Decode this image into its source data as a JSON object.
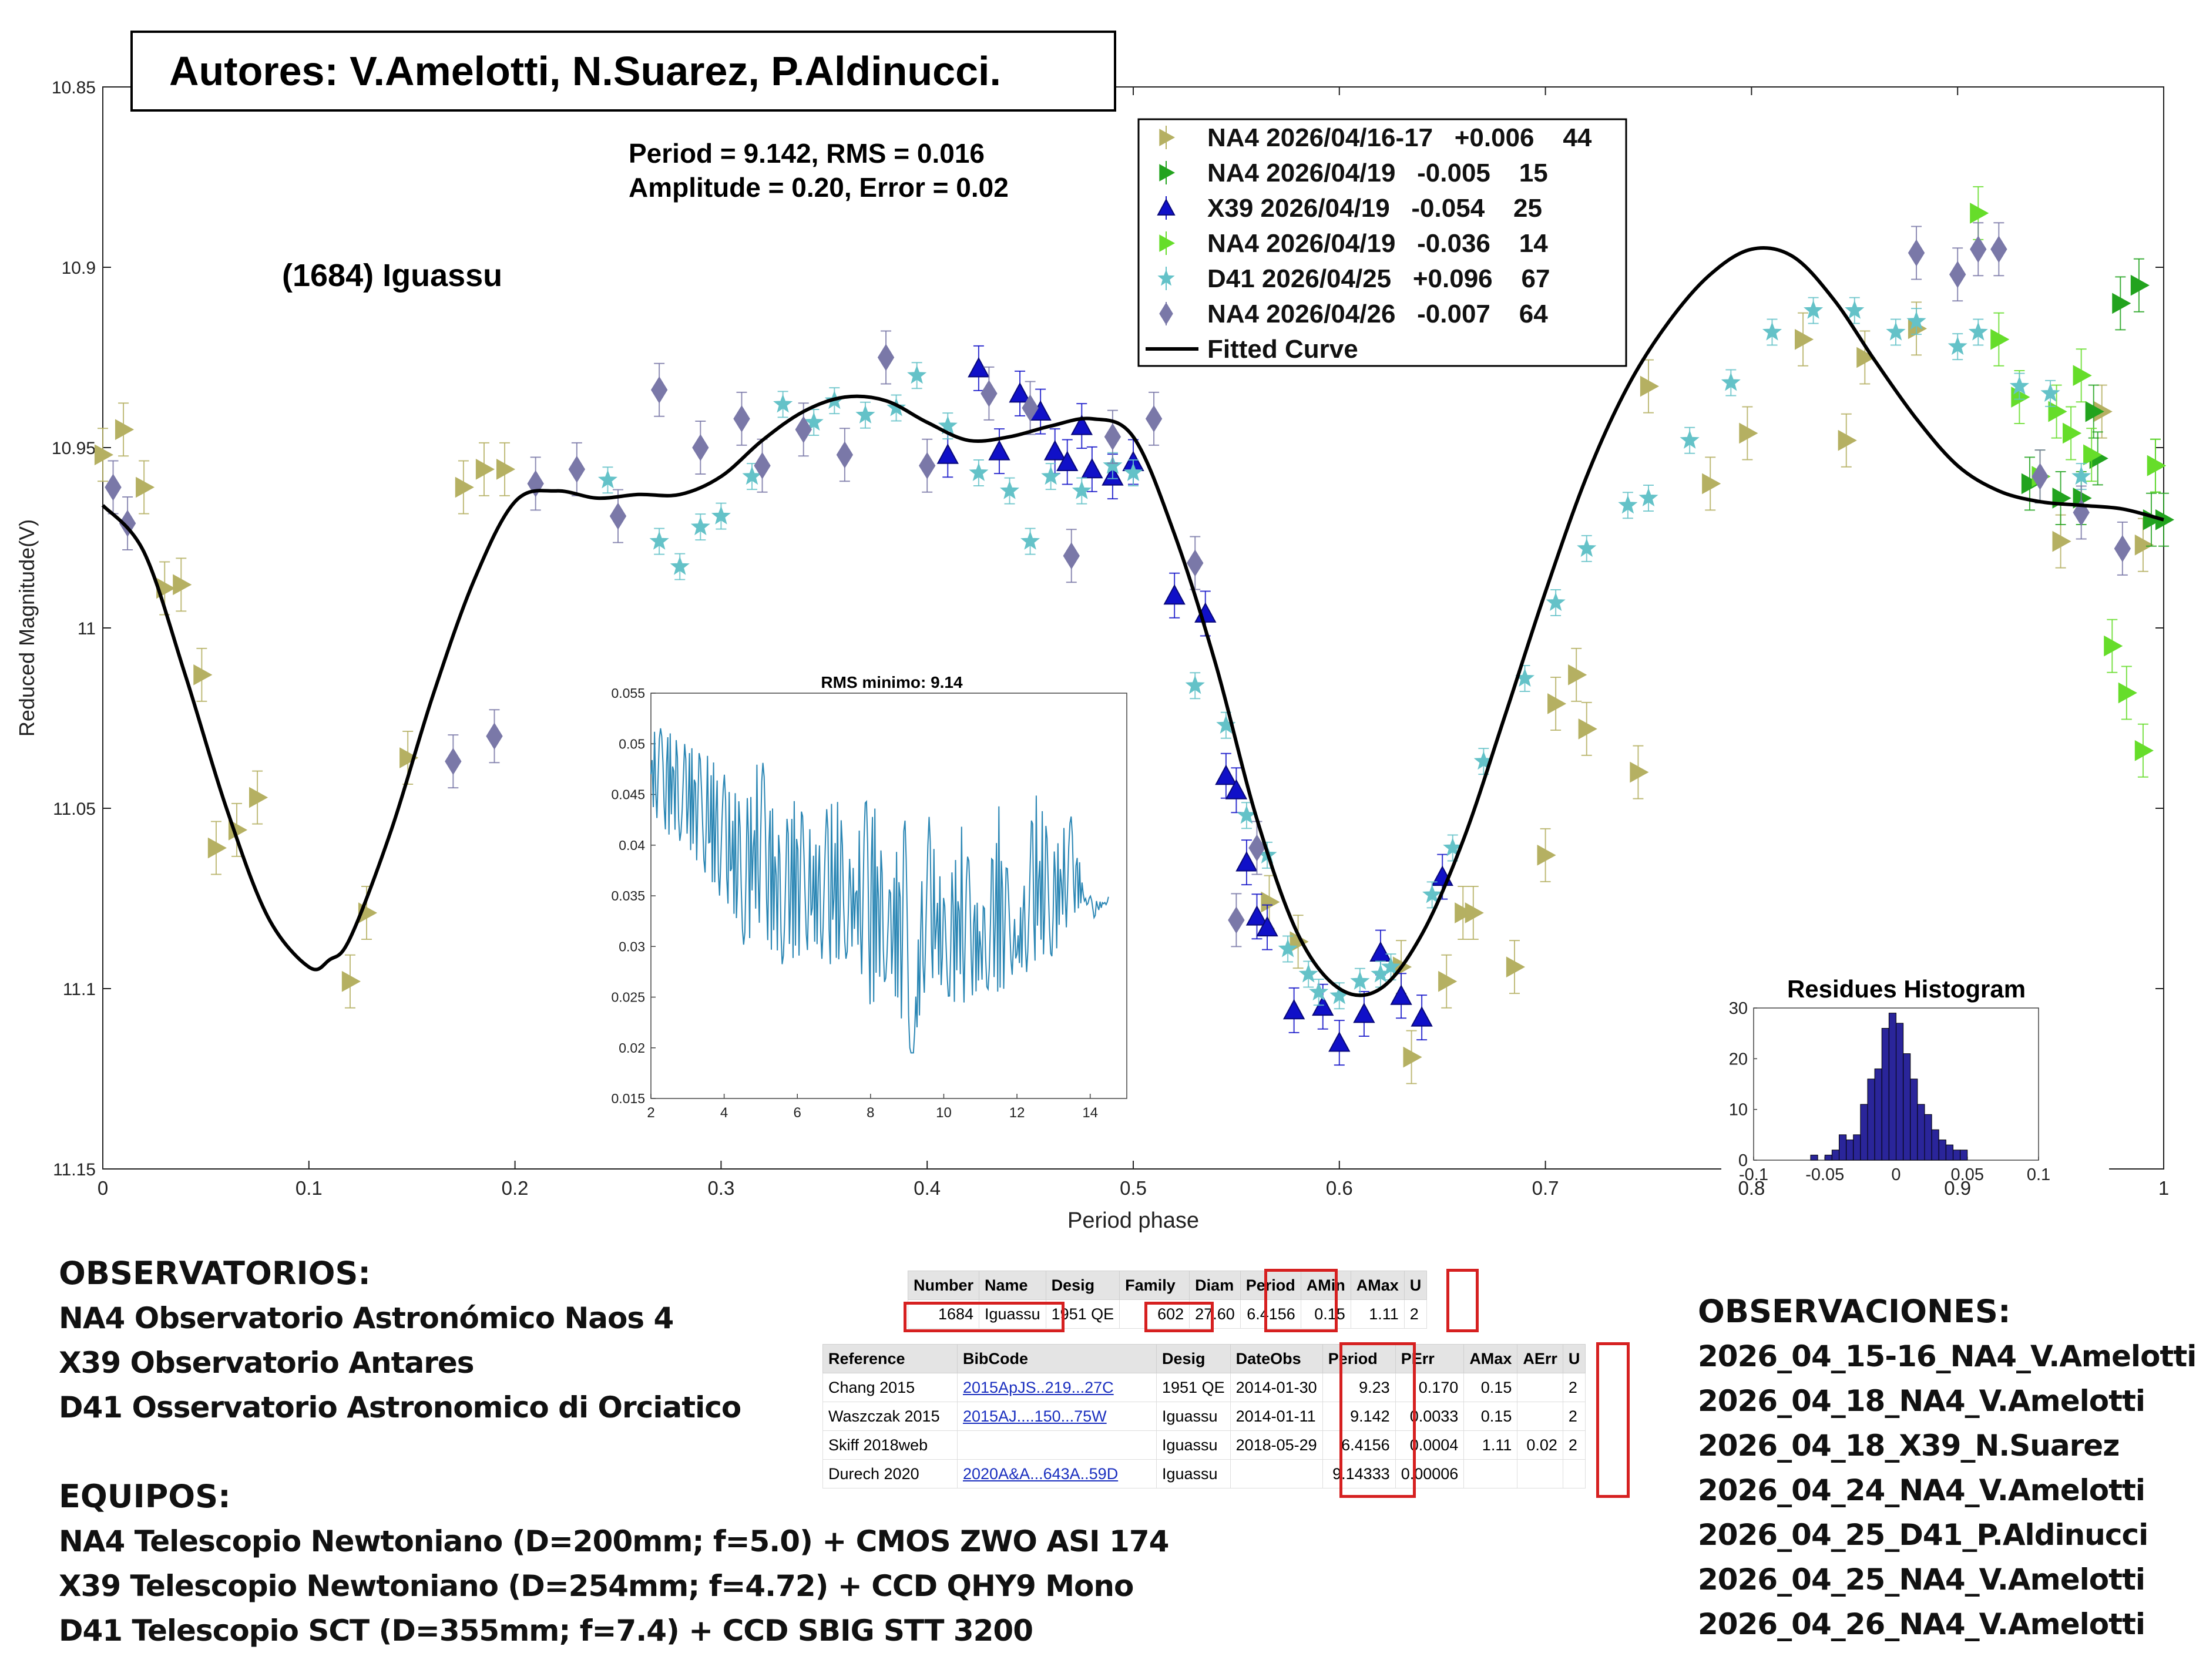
{
  "header": {
    "authors": "Autores: V.Amelotti, N.Suarez, P.Aldinucci.",
    "object_name": "(1684) Iguassu",
    "stats_line1": "Period =  9.142, RMS = 0.016",
    "stats_line2": "Amplitude = 0.20, Error = 0.02"
  },
  "chart_data": [
    {
      "id": "lightcurve",
      "type": "scatter",
      "xlabel": "Period phase",
      "ylabel": "Reduced Magnitude(V)",
      "xlim": [
        0,
        1
      ],
      "ylim": [
        10.85,
        11.15
      ],
      "y_reversed": true,
      "x_ticks": [
        "0",
        "0.1",
        "0.2",
        "0.3",
        "0.4",
        "0.5",
        "0.6",
        "0.7",
        "0.8",
        "0.9",
        "1"
      ],
      "y_ticks": [
        "10.85",
        "10.9",
        "10.95",
        "11",
        "11.05",
        "11.1",
        "11.15"
      ],
      "grid": false,
      "legend_placement": "top-right",
      "series": [
        {
          "name": "NA4 2026/04/16-17   +0.006    44",
          "marker": "triangle-right",
          "color": "#b5b062",
          "x": [
            0.0,
            0.01,
            0.02,
            0.03,
            0.038,
            0.048,
            0.055,
            0.065,
            0.075,
            0.12,
            0.128,
            0.148,
            0.175,
            0.185,
            0.195,
            0.566,
            0.58,
            0.63,
            0.635,
            0.652,
            0.66,
            0.665,
            0.685,
            0.7,
            0.705,
            0.715,
            0.72,
            0.745,
            0.75,
            0.78,
            0.798,
            0.825,
            0.846,
            0.855,
            0.88,
            0.95,
            0.97,
            0.99
          ],
          "y": [
            10.952,
            10.945,
            10.961,
            10.989,
            10.988,
            11.013,
            11.061,
            11.056,
            11.047,
            11.098,
            11.079,
            11.036,
            10.961,
            10.956,
            10.956,
            11.076,
            11.087,
            11.094,
            11.119,
            11.098,
            11.079,
            11.079,
            11.094,
            11.063,
            11.021,
            11.013,
            11.028,
            11.04,
            10.933,
            10.96,
            10.946,
            10.92,
            10.948,
            10.925,
            10.917,
            10.976,
            10.94,
            10.977
          ]
        },
        {
          "name": "NA4 2026/04/19   -0.005    15",
          "marker": "triangle-right",
          "color": "#22a31e",
          "x": [
            0.935,
            0.95,
            0.96,
            0.966,
            0.968,
            0.979,
            0.988,
            0.994,
            0.996,
            1.0
          ],
          "y": [
            10.96,
            10.964,
            10.964,
            10.94,
            10.953,
            10.91,
            10.905,
            10.97,
            10.955,
            10.97
          ]
        },
        {
          "name": "X39 2026/04/19   -0.054    25",
          "marker": "triangle-up",
          "color": "#1010c8",
          "x": [
            0.41,
            0.425,
            0.435,
            0.445,
            0.455,
            0.462,
            0.468,
            0.475,
            0.48,
            0.49,
            0.5,
            0.52,
            0.535,
            0.545,
            0.55,
            0.555,
            0.56,
            0.565,
            0.578,
            0.592,
            0.6,
            0.612,
            0.62,
            0.63,
            0.64,
            0.65
          ],
          "y": [
            10.952,
            10.928,
            10.951,
            10.935,
            10.94,
            10.951,
            10.954,
            10.944,
            10.956,
            10.958,
            10.954,
            10.991,
            10.996,
            11.041,
            11.045,
            11.065,
            11.08,
            11.083,
            11.106,
            11.105,
            11.115,
            11.107,
            11.09,
            11.102,
            11.108,
            11.069
          ]
        },
        {
          "name": "NA4 2026/04/19   -0.036    14",
          "marker": "triangle-right",
          "color": "#66dd2a",
          "x": [
            0.91,
            0.92,
            0.93,
            0.94,
            0.948,
            0.955,
            0.96,
            0.965,
            0.975,
            0.982,
            0.99,
            0.996
          ],
          "y": [
            10.885,
            10.92,
            10.936,
            10.958,
            10.94,
            10.946,
            10.93,
            10.952,
            11.005,
            11.018,
            11.034,
            10.955
          ]
        },
        {
          "name": "D41 2026/04/25   +0.096    67",
          "marker": "star",
          "color": "#64c2c8",
          "x": [
            0.245,
            0.27,
            0.28,
            0.29,
            0.3,
            0.315,
            0.33,
            0.345,
            0.355,
            0.37,
            0.385,
            0.395,
            0.41,
            0.425,
            0.44,
            0.45,
            0.46,
            0.475,
            0.49,
            0.5,
            0.53,
            0.545,
            0.555,
            0.565,
            0.575,
            0.585,
            0.59,
            0.6,
            0.61,
            0.62,
            0.625,
            0.645,
            0.655,
            0.67,
            0.69,
            0.705,
            0.72,
            0.74,
            0.75,
            0.77,
            0.79,
            0.81,
            0.83,
            0.85,
            0.87,
            0.88,
            0.9,
            0.91,
            0.93,
            0.945,
            0.96
          ],
          "y": [
            10.959,
            10.976,
            10.983,
            10.972,
            10.969,
            10.958,
            10.938,
            10.943,
            10.937,
            10.941,
            10.939,
            10.93,
            10.944,
            10.957,
            10.962,
            10.976,
            10.958,
            10.962,
            10.955,
            10.957,
            11.016,
            11.027,
            11.052,
            11.063,
            11.089,
            11.096,
            11.101,
            11.102,
            11.098,
            11.096,
            11.094,
            11.074,
            11.061,
            11.037,
            11.014,
            10.993,
            10.978,
            10.966,
            10.964,
            10.948,
            10.932,
            10.918,
            10.912,
            10.912,
            10.918,
            10.915,
            10.922,
            10.918,
            10.933,
            10.935,
            10.958
          ]
        },
        {
          "name": "NA4 2026/04/26   -0.007    64",
          "marker": "diamond",
          "color": "#7a78a8",
          "x": [
            0.005,
            0.012,
            0.17,
            0.19,
            0.21,
            0.23,
            0.25,
            0.27,
            0.29,
            0.31,
            0.32,
            0.34,
            0.36,
            0.38,
            0.4,
            0.43,
            0.45,
            0.47,
            0.49,
            0.51,
            0.53,
            0.55,
            0.56,
            0.88,
            0.9,
            0.91,
            0.92,
            0.94,
            0.96,
            0.98
          ],
          "y": [
            10.961,
            10.971,
            11.037,
            11.03,
            10.96,
            10.956,
            10.969,
            10.934,
            10.95,
            10.942,
            10.955,
            10.945,
            10.952,
            10.925,
            10.955,
            10.935,
            10.939,
            10.98,
            10.947,
            10.942,
            10.982,
            11.081,
            11.061,
            10.896,
            10.902,
            10.895,
            10.895,
            10.958,
            10.968,
            10.978
          ]
        }
      ],
      "fitted_curve": {
        "name": "Fitted Curve",
        "x": [
          0,
          0.02,
          0.04,
          0.06,
          0.08,
          0.1,
          0.11,
          0.12,
          0.14,
          0.16,
          0.18,
          0.2,
          0.22,
          0.24,
          0.26,
          0.28,
          0.3,
          0.32,
          0.34,
          0.36,
          0.38,
          0.4,
          0.42,
          0.44,
          0.46,
          0.48,
          0.5,
          0.52,
          0.54,
          0.56,
          0.58,
          0.6,
          0.62,
          0.64,
          0.66,
          0.68,
          0.7,
          0.72,
          0.74,
          0.76,
          0.78,
          0.8,
          0.82,
          0.84,
          0.86,
          0.88,
          0.9,
          0.92,
          0.94,
          0.96,
          0.98,
          1.0
        ],
        "y": [
          10.966,
          10.979,
          11.013,
          11.05,
          11.08,
          11.094,
          11.092,
          11.086,
          11.056,
          11.019,
          10.987,
          10.965,
          10.962,
          10.964,
          10.963,
          10.963,
          10.958,
          10.948,
          10.94,
          10.936,
          10.937,
          10.943,
          10.948,
          10.947,
          10.944,
          10.942,
          10.947,
          10.974,
          11.01,
          11.053,
          11.085,
          11.1,
          11.1,
          11.085,
          11.059,
          11.025,
          10.99,
          10.958,
          10.933,
          10.915,
          10.902,
          10.895,
          10.897,
          10.909,
          10.926,
          10.942,
          10.955,
          10.962,
          10.965,
          10.966,
          10.967,
          10.97
        ]
      }
    },
    {
      "id": "periodogram",
      "type": "line",
      "title": "RMS minimo: 9.14",
      "xlim": [
        2,
        15
      ],
      "ylim": [
        0.015,
        0.055
      ],
      "x_ticks": [
        "2",
        "4",
        "6",
        "8",
        "10",
        "12",
        "14"
      ],
      "y_ticks": [
        "0.015",
        "0.02",
        "0.025",
        "0.03",
        "0.035",
        "0.04",
        "0.045",
        "0.05",
        "0.055"
      ],
      "color": "#2a86b4",
      "x": [
        2,
        2.5,
        3,
        3.5,
        4,
        4.5,
        5,
        5.5,
        6,
        6.5,
        7,
        7.5,
        8,
        8.5,
        9,
        9.14,
        9.5,
        10,
        10.5,
        11,
        11.5,
        12,
        12.5,
        13,
        13.5,
        14,
        14.5
      ],
      "y": [
        0.051,
        0.052,
        0.05,
        0.049,
        0.047,
        0.044,
        0.049,
        0.042,
        0.045,
        0.04,
        0.046,
        0.038,
        0.047,
        0.036,
        0.044,
        0.019,
        0.045,
        0.035,
        0.042,
        0.033,
        0.044,
        0.031,
        0.046,
        0.04,
        0.043,
        0.032,
        0.035
      ],
      "lower_envelope": [
        0.043,
        0.041,
        0.04,
        0.037,
        0.034,
        0.03,
        0.032,
        0.028,
        0.029,
        0.03,
        0.026,
        0.03,
        0.024,
        0.027,
        0.021,
        0.019,
        0.026,
        0.025,
        0.024,
        0.026,
        0.025,
        0.028,
        0.027,
        0.029,
        0.033,
        0.035,
        0.034
      ]
    },
    {
      "id": "residues-histogram",
      "type": "bar",
      "title": "Residues Histogram",
      "xlim": [
        -0.1,
        0.1
      ],
      "ylim": [
        0,
        30
      ],
      "x_ticks": [
        "-0.1",
        "-0.05",
        "0",
        "0.05",
        "0.1"
      ],
      "y_ticks": [
        "0",
        "10",
        "20",
        "30"
      ],
      "color": "#2a259a",
      "bin_width": 0.005,
      "bin_centers": [
        -0.0575,
        -0.0475,
        -0.0425,
        -0.0375,
        -0.0325,
        -0.0275,
        -0.0225,
        -0.0175,
        -0.0125,
        -0.0075,
        -0.0025,
        0.0025,
        0.0075,
        0.0125,
        0.0175,
        0.0225,
        0.0275,
        0.0325,
        0.0375,
        0.0425,
        0.0475
      ],
      "values": [
        1,
        1,
        2,
        5,
        4,
        5,
        11,
        16,
        18,
        26,
        29,
        27,
        21,
        16,
        11,
        9,
        6,
        4,
        3,
        2,
        2
      ]
    }
  ],
  "observatorios": {
    "heading": "OBSERVATORIOS:",
    "lines": [
      "NA4 Observatorio Astronómico Naos 4",
      "X39 Observatorio Antares",
      "D41 Osservatorio Astronomico di Orciatico"
    ]
  },
  "equipos": {
    "heading": "EQUIPOS:",
    "lines": [
      "NA4 Telescopio Newtoniano (D=200mm; f=5.0) + CMOS ZWO ASI 174",
      "X39 Telescopio Newtoniano (D=254mm; f=4.72) + CCD QHY9 Mono",
      "D41 Telescopio SCT (D=355mm; f=7.4) + CCD SBIG STT 3200"
    ]
  },
  "observaciones": {
    "heading": "OBSERVACIONES:",
    "lines": [
      "2026_04_15-16_NA4_V.Amelotti",
      "2026_04_18_NA4_V.Amelotti",
      "2026_04_18_X39_N.Suarez",
      "2026_04_24_NA4_V.Amelotti",
      "2026_04_25_D41_P.Aldinucci",
      "2026_04_25_NA4_V.Amelotti",
      "2026_04_26_NA4_V.Amelotti"
    ]
  },
  "summary_table": {
    "headers": [
      "Number",
      "Name",
      "Desig",
      "Family",
      "Diam",
      "Period",
      "AMin",
      "AMax",
      "U"
    ],
    "row": [
      "1684",
      "Iguassu",
      "1951 QE",
      "602",
      "27.60",
      "6.4156",
      "0.15",
      "1.11",
      "2"
    ]
  },
  "reference_table": {
    "headers": [
      "Reference",
      "BibCode",
      "Desig",
      "DateObs",
      "Period",
      "PErr",
      "AMax",
      "AErr",
      "U"
    ],
    "rows": [
      [
        "Chang 2015",
        "2015ApJS..219...27C",
        "1951 QE",
        "2014-01-30",
        "9.23",
        "0.170",
        "0.15",
        "",
        "2"
      ],
      [
        "Waszczak 2015",
        "2015AJ....150...75W",
        "Iguassu",
        "2014-01-11",
        "9.142",
        "0.0033",
        "0.15",
        "",
        "2"
      ],
      [
        "Skiff 2018web",
        "",
        "Iguassu",
        "2018-05-29",
        "6.4156",
        "0.0004",
        "1.11",
        "0.02",
        "2"
      ],
      [
        "Durech 2020",
        "2020A&A...643A..59D",
        "Iguassu",
        "",
        "9.14333",
        "0.00006",
        "",
        "",
        ""
      ]
    ]
  }
}
